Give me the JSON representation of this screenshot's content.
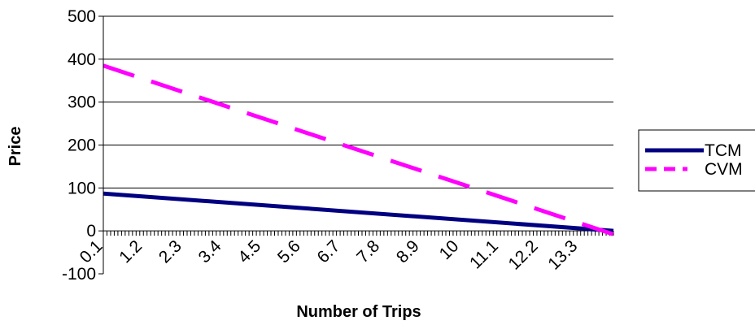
{
  "chart_data": {
    "type": "line",
    "xlabel": "Number of Trips",
    "ylabel": "Price",
    "ylim": [
      -100,
      500
    ],
    "yticks": [
      -100,
      0,
      100,
      200,
      300,
      400,
      500
    ],
    "x_tick_labels": [
      "0.1",
      "1.2",
      "2.3",
      "3.4",
      "4.5",
      "5.6",
      "6.7",
      "7.8",
      "8.9",
      "10",
      "11.1",
      "12.2",
      "13.3"
    ],
    "xlim": [
      0.1,
      14.0
    ],
    "grid": "horizontal",
    "legend": "right",
    "series": [
      {
        "name": "TCM",
        "color": "#000080",
        "style": "solid",
        "x": [
          0.1,
          14.0
        ],
        "y": [
          87,
          0
        ]
      },
      {
        "name": "CVM",
        "color": "#ff00ff",
        "style": "dashed",
        "x": [
          0.1,
          14.0
        ],
        "y": [
          385,
          -8
        ]
      }
    ]
  }
}
